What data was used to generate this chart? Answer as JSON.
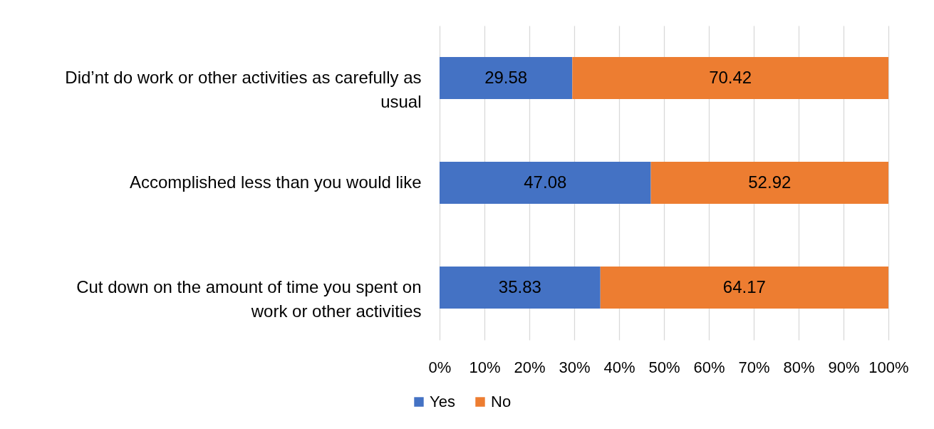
{
  "chart_data": {
    "type": "bar",
    "orientation": "horizontal",
    "stacked": true,
    "categories": [
      "Did’nt do work or other activities as carefully as usual",
      "Accomplished less than you would like",
      "Cut down on the amount of time you spent on work or other activities"
    ],
    "series": [
      {
        "name": "Yes",
        "color": "#4472c4",
        "values": [
          29.58,
          47.08,
          35.83
        ]
      },
      {
        "name": "No",
        "color": "#ed7d31",
        "values": [
          70.42,
          52.92,
          64.17
        ]
      }
    ],
    "xlim": [
      0,
      100
    ],
    "xticks": [
      {
        "value": 0,
        "label": "0%"
      },
      {
        "value": 10,
        "label": "10%"
      },
      {
        "value": 20,
        "label": "20%"
      },
      {
        "value": 30,
        "label": "30%"
      },
      {
        "value": 40,
        "label": "40%"
      },
      {
        "value": 50,
        "label": "50%"
      },
      {
        "value": 60,
        "label": "60%"
      },
      {
        "value": 70,
        "label": "70%"
      },
      {
        "value": 80,
        "label": "80%"
      },
      {
        "value": 90,
        "label": "90%"
      },
      {
        "value": 100,
        "label": "100%"
      }
    ],
    "grid": "x",
    "legend": "bottom",
    "data_labels": true
  }
}
